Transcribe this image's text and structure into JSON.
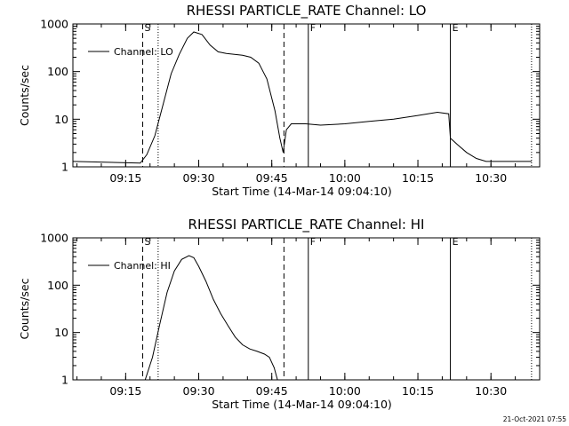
{
  "chart_data": [
    {
      "type": "line",
      "title": "RHESSI PARTICLE_RATE Channel: LO",
      "xlabel": "Start Time (14-Mar-14 09:04:10)",
      "ylabel": "Counts/sec",
      "yscale": "log",
      "ylim": [
        1,
        1000
      ],
      "xlim": [
        "09:04:10",
        "10:40:00"
      ],
      "x_ticks": [
        "09:15",
        "09:30",
        "09:45",
        "10:00",
        "10:15",
        "10:30"
      ],
      "y_ticks": [
        "1",
        "10",
        "100",
        "1000"
      ],
      "grid": false,
      "legend": {
        "placement": "top-left",
        "entries": [
          "Channel: LO"
        ]
      },
      "event_markers": [
        {
          "time": "09:18:30",
          "style": "dashed",
          "label": "S"
        },
        {
          "time": "09:21:40",
          "style": "dotted",
          "label": ""
        },
        {
          "time": "09:47:30",
          "style": "dashed",
          "label": ""
        },
        {
          "time": "09:52:30",
          "style": "solid",
          "label": "F"
        },
        {
          "time": "10:21:40",
          "style": "solid",
          "label": "E"
        },
        {
          "time": "10:38:20",
          "style": "dotted",
          "label": ""
        }
      ],
      "series": [
        {
          "name": "Channel: LO",
          "x": [
            "09:04:10",
            "09:18:00",
            "09:19:20",
            "09:21:00",
            "09:22:40",
            "09:24:20",
            "09:26:00",
            "09:27:40",
            "09:29:00",
            "09:30:40",
            "09:32:20",
            "09:34:00",
            "09:35:40",
            "09:37:20",
            "09:39:00",
            "09:40:40",
            "09:42:20",
            "09:44:00",
            "09:45:40",
            "09:46:40",
            "09:47:20",
            "09:48:00",
            "09:49:00",
            "09:52:00",
            "09:55:00",
            "10:00:00",
            "10:05:00",
            "10:10:00",
            "10:15:00",
            "10:19:00",
            "10:21:20",
            "10:21:40",
            "10:23:00",
            "10:25:00",
            "10:27:00",
            "10:29:00",
            "10:30:00",
            "10:38:20"
          ],
          "y": [
            1.3,
            1.2,
            1.8,
            4.5,
            20,
            90,
            230,
            500,
            680,
            600,
            360,
            260,
            240,
            230,
            220,
            200,
            150,
            70,
            15,
            4,
            2,
            6,
            8,
            8,
            7.5,
            8,
            9,
            10,
            12,
            14,
            13,
            4,
            3,
            2,
            1.5,
            1.3,
            1.3,
            1.3
          ]
        }
      ]
    },
    {
      "type": "line",
      "title": "RHESSI PARTICLE_RATE Channel: HI",
      "xlabel": "Start Time (14-Mar-14 09:04:10)",
      "ylabel": "Counts/sec",
      "yscale": "log",
      "ylim": [
        1,
        1000
      ],
      "xlim": [
        "09:04:10",
        "10:40:00"
      ],
      "x_ticks": [
        "09:15",
        "09:30",
        "09:45",
        "10:00",
        "10:15",
        "10:30"
      ],
      "y_ticks": [
        "1",
        "10",
        "100",
        "1000"
      ],
      "grid": false,
      "legend": {
        "placement": "top-left",
        "entries": [
          "Channel: HI"
        ]
      },
      "event_markers": [
        {
          "time": "09:18:30",
          "style": "dashed",
          "label": "S"
        },
        {
          "time": "09:21:40",
          "style": "dotted",
          "label": ""
        },
        {
          "time": "09:47:30",
          "style": "dashed",
          "label": ""
        },
        {
          "time": "09:52:30",
          "style": "solid",
          "label": "F"
        },
        {
          "time": "10:21:40",
          "style": "solid",
          "label": "E"
        },
        {
          "time": "10:38:20",
          "style": "dotted",
          "label": ""
        }
      ],
      "series": [
        {
          "name": "Channel: HI",
          "x": [
            "09:19:00",
            "09:20:30",
            "09:22:00",
            "09:23:30",
            "09:25:00",
            "09:26:30",
            "09:28:00",
            "09:29:00",
            "09:30:00",
            "09:31:30",
            "09:33:00",
            "09:34:30",
            "09:36:00",
            "09:37:30",
            "09:39:00",
            "09:40:30",
            "09:42:00",
            "09:43:30",
            "09:44:30",
            "09:45:30",
            "09:46:10"
          ],
          "y": [
            1,
            3,
            15,
            70,
            200,
            350,
            420,
            380,
            250,
            120,
            50,
            25,
            14,
            8,
            5.5,
            4.5,
            4,
            3.5,
            3,
            1.8,
            1
          ]
        }
      ]
    }
  ],
  "footer": {
    "timestamp": "21-Oct-2021 07:55"
  }
}
